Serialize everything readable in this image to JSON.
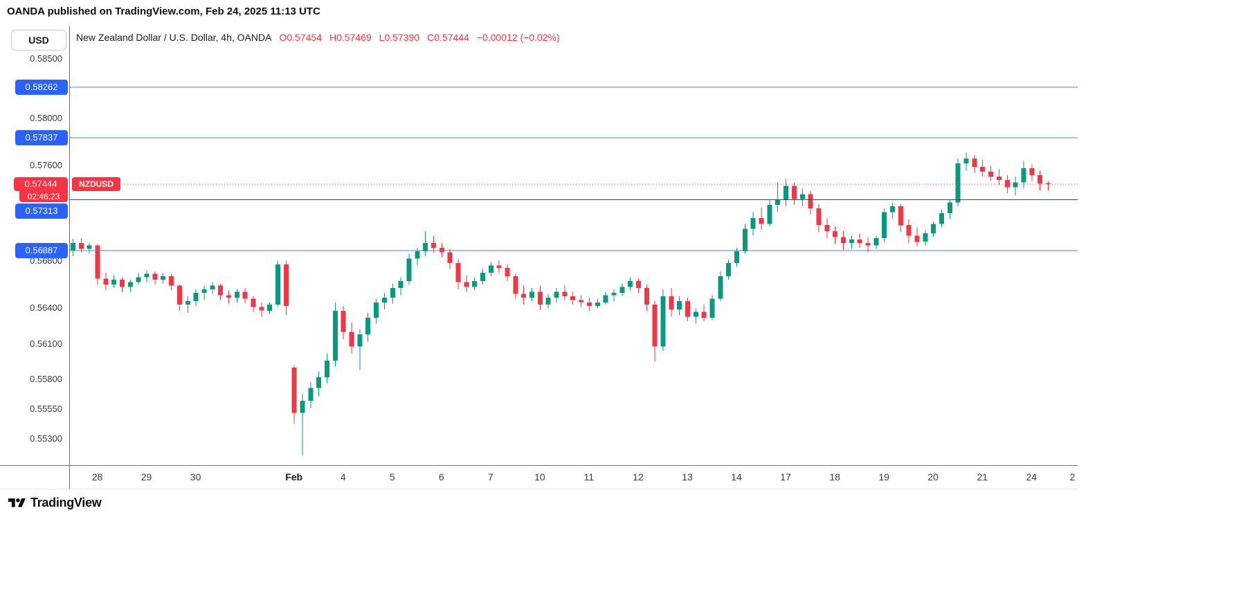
{
  "credit": "OANDA published on TradingView.com, Feb 24, 2025 11:13 UTC",
  "header": {
    "symbol_title": "New Zealand Dollar / U.S. Dollar, 4h, OANDA",
    "o": "O0.57454",
    "h": "H0.57469",
    "l": "L0.57390",
    "c": "C0.57444",
    "change": "−0.00012 (−0.02%)",
    "value_color": "#f23645"
  },
  "price_scale": {
    "currency_label": "USD"
  },
  "footer": {
    "logo_text": "TradingView"
  },
  "chart_data": {
    "type": "candlestick",
    "symbol": "NZDUSD",
    "timeframe": "4h",
    "exchange": "OANDA",
    "title": "New Zealand Dollar / U.S. Dollar, 4h, OANDA",
    "up_color": "#089981",
    "down_color": "#f23645",
    "grid": false,
    "y_axis": {
      "min": 0.55079,
      "max": 0.58774
    },
    "y_ticks": [
      "0.58500",
      "0.58000",
      "0.57600",
      "0.56800",
      "0.56400",
      "0.56100",
      "0.55800",
      "0.55550",
      "0.55300"
    ],
    "x_ticks": [
      {
        "label": "28",
        "index": 3
      },
      {
        "label": "29",
        "index": 9
      },
      {
        "label": "30",
        "index": 15
      },
      {
        "label": "Feb",
        "index": 27,
        "major": true
      },
      {
        "label": "4",
        "index": 33
      },
      {
        "label": "5",
        "index": 39
      },
      {
        "label": "6",
        "index": 45
      },
      {
        "label": "7",
        "index": 51
      },
      {
        "label": "10",
        "index": 57
      },
      {
        "label": "11",
        "index": 63
      },
      {
        "label": "12",
        "index": 69
      },
      {
        "label": "13",
        "index": 75
      },
      {
        "label": "14",
        "index": 81
      },
      {
        "label": "17",
        "index": 87
      },
      {
        "label": "18",
        "index": 93
      },
      {
        "label": "19",
        "index": 99
      },
      {
        "label": "20",
        "index": 105
      },
      {
        "label": "21",
        "index": 111
      },
      {
        "label": "24",
        "index": 117
      },
      {
        "label": "2",
        "index": 122
      }
    ],
    "levels": [
      {
        "label": "0.58262",
        "price": 0.58262,
        "line_color": "#4880ee",
        "badge_color": "#2962ff"
      },
      {
        "label": "0.57837",
        "price": 0.57837,
        "line_color": "#4880ee",
        "badge_color": "#2962ff"
      },
      {
        "label": "0.57313",
        "price": 0.57313,
        "line_color": "#37474f",
        "badge_color": "#2962ff",
        "badge_dy": 16
      },
      {
        "label": "0.56887",
        "price": 0.56887,
        "line_color": "#4880ee",
        "badge_color": "#2962ff"
      }
    ],
    "price_line": {
      "label": "0.57444",
      "price": 0.57444,
      "countdown": "02:46:23",
      "tag": "NZDUSD",
      "color": "#f23645"
    },
    "candles": [
      [
        0.5689,
        0.56985,
        0.5684,
        0.5695
      ],
      [
        0.5695,
        0.5699,
        0.5687,
        0.569
      ],
      [
        0.569,
        0.5695,
        0.5686,
        0.5693
      ],
      [
        0.5693,
        0.5694,
        0.566,
        0.5665
      ],
      [
        0.5665,
        0.567,
        0.5655,
        0.566
      ],
      [
        0.566,
        0.5668,
        0.5657,
        0.5664
      ],
      [
        0.5664,
        0.5666,
        0.5654,
        0.5658
      ],
      [
        0.5658,
        0.5664,
        0.5654,
        0.5662
      ],
      [
        0.5662,
        0.567,
        0.566,
        0.5666
      ],
      [
        0.5666,
        0.5672,
        0.5662,
        0.5669
      ],
      [
        0.5669,
        0.5671,
        0.566,
        0.5664
      ],
      [
        0.5664,
        0.567,
        0.5661,
        0.5667
      ],
      [
        0.5667,
        0.5669,
        0.5655,
        0.5659
      ],
      [
        0.5659,
        0.566,
        0.5638,
        0.5643
      ],
      [
        0.5643,
        0.565,
        0.5636,
        0.5646
      ],
      [
        0.5646,
        0.5656,
        0.5642,
        0.5653
      ],
      [
        0.5653,
        0.5659,
        0.5647,
        0.5656
      ],
      [
        0.5656,
        0.5662,
        0.5652,
        0.5659
      ],
      [
        0.5659,
        0.5661,
        0.5647,
        0.5651
      ],
      [
        0.5651,
        0.5655,
        0.5644,
        0.5649
      ],
      [
        0.5649,
        0.5656,
        0.5645,
        0.5654
      ],
      [
        0.5654,
        0.5657,
        0.5644,
        0.5648
      ],
      [
        0.5648,
        0.565,
        0.5637,
        0.5641
      ],
      [
        0.5641,
        0.5645,
        0.5633,
        0.5638
      ],
      [
        0.5638,
        0.5645,
        0.5635,
        0.5643
      ],
      [
        0.5643,
        0.568,
        0.5641,
        0.5677
      ],
      [
        0.5677,
        0.568,
        0.5634,
        0.5642
      ],
      [
        0.559,
        0.5592,
        0.5543,
        0.5552
      ],
      [
        0.5552,
        0.5568,
        0.5516,
        0.5562
      ],
      [
        0.5562,
        0.5578,
        0.5556,
        0.5573
      ],
      [
        0.5573,
        0.5587,
        0.5566,
        0.5582
      ],
      [
        0.5582,
        0.5602,
        0.5577,
        0.5596
      ],
      [
        0.5596,
        0.5645,
        0.5591,
        0.5638
      ],
      [
        0.5638,
        0.5642,
        0.5614,
        0.562
      ],
      [
        0.562,
        0.5628,
        0.5602,
        0.5608
      ],
      [
        0.5608,
        0.5622,
        0.5588,
        0.5618
      ],
      [
        0.5618,
        0.5636,
        0.5612,
        0.5632
      ],
      [
        0.5632,
        0.5648,
        0.5627,
        0.5645
      ],
      [
        0.5645,
        0.5653,
        0.5639,
        0.5649
      ],
      [
        0.5649,
        0.5661,
        0.5644,
        0.5657
      ],
      [
        0.5657,
        0.5666,
        0.5651,
        0.5663
      ],
      [
        0.5663,
        0.5686,
        0.566,
        0.5682
      ],
      [
        0.5682,
        0.5691,
        0.5676,
        0.5688
      ],
      [
        0.5688,
        0.5705,
        0.5684,
        0.5695
      ],
      [
        0.5695,
        0.5701,
        0.5687,
        0.5691
      ],
      [
        0.5691,
        0.5695,
        0.5683,
        0.5687
      ],
      [
        0.5687,
        0.569,
        0.5673,
        0.5678
      ],
      [
        0.5678,
        0.5681,
        0.5656,
        0.5662
      ],
      [
        0.5662,
        0.5668,
        0.5654,
        0.5658
      ],
      [
        0.5658,
        0.5666,
        0.5655,
        0.5663
      ],
      [
        0.5663,
        0.5673,
        0.566,
        0.567
      ],
      [
        0.567,
        0.5679,
        0.5667,
        0.5676
      ],
      [
        0.5676,
        0.568,
        0.567,
        0.5674
      ],
      [
        0.5674,
        0.5677,
        0.5663,
        0.5667
      ],
      [
        0.5667,
        0.5669,
        0.5648,
        0.5652
      ],
      [
        0.5652,
        0.5659,
        0.5643,
        0.5649
      ],
      [
        0.5649,
        0.5657,
        0.5646,
        0.5654
      ],
      [
        0.5654,
        0.5659,
        0.5639,
        0.5643
      ],
      [
        0.5643,
        0.5652,
        0.564,
        0.5649
      ],
      [
        0.5649,
        0.5657,
        0.5645,
        0.5654
      ],
      [
        0.5654,
        0.5659,
        0.5647,
        0.565
      ],
      [
        0.565,
        0.5654,
        0.5643,
        0.5647
      ],
      [
        0.5647,
        0.5651,
        0.5641,
        0.5645
      ],
      [
        0.5645,
        0.5649,
        0.5638,
        0.5642
      ],
      [
        0.5642,
        0.5648,
        0.564,
        0.5645
      ],
      [
        0.5645,
        0.5654,
        0.5643,
        0.5651
      ],
      [
        0.5651,
        0.5656,
        0.5646,
        0.5653
      ],
      [
        0.5653,
        0.5661,
        0.565,
        0.5658
      ],
      [
        0.5658,
        0.5666,
        0.5655,
        0.5663
      ],
      [
        0.5663,
        0.5665,
        0.5653,
        0.5657
      ],
      [
        0.5657,
        0.566,
        0.5638,
        0.5643
      ],
      [
        0.5643,
        0.5646,
        0.5595,
        0.5608
      ],
      [
        0.5608,
        0.5656,
        0.5604,
        0.565
      ],
      [
        0.565,
        0.5657,
        0.5633,
        0.5639
      ],
      [
        0.5639,
        0.565,
        0.5634,
        0.5646
      ],
      [
        0.5646,
        0.5649,
        0.5629,
        0.5633
      ],
      [
        0.5633,
        0.564,
        0.5627,
        0.5637
      ],
      [
        0.5637,
        0.5643,
        0.5629,
        0.5632
      ],
      [
        0.5632,
        0.5651,
        0.563,
        0.5648
      ],
      [
        0.5648,
        0.5671,
        0.5646,
        0.5667
      ],
      [
        0.5667,
        0.5681,
        0.5664,
        0.5678
      ],
      [
        0.5678,
        0.5691,
        0.5675,
        0.5688
      ],
      [
        0.5688,
        0.5711,
        0.5686,
        0.5707
      ],
      [
        0.5707,
        0.5721,
        0.5701,
        0.5716
      ],
      [
        0.5716,
        0.5725,
        0.5706,
        0.5711
      ],
      [
        0.5711,
        0.5731,
        0.5709,
        0.5727
      ],
      [
        0.5727,
        0.5746,
        0.5721,
        0.5731
      ],
      [
        0.5731,
        0.5749,
        0.5726,
        0.5743
      ],
      [
        0.5743,
        0.5746,
        0.5727,
        0.5732
      ],
      [
        0.5732,
        0.5741,
        0.5726,
        0.5736
      ],
      [
        0.5736,
        0.5739,
        0.5719,
        0.5724
      ],
      [
        0.5724,
        0.5728,
        0.5704,
        0.571
      ],
      [
        0.571,
        0.5716,
        0.5699,
        0.5705
      ],
      [
        0.5705,
        0.5709,
        0.5694,
        0.57
      ],
      [
        0.57,
        0.5705,
        0.5689,
        0.5695
      ],
      [
        0.5695,
        0.5701,
        0.569,
        0.5698
      ],
      [
        0.5698,
        0.5703,
        0.5691,
        0.5695
      ],
      [
        0.5695,
        0.57,
        0.5687,
        0.5693
      ],
      [
        0.5693,
        0.5701,
        0.569,
        0.5699
      ],
      [
        0.5699,
        0.5724,
        0.5696,
        0.5721
      ],
      [
        0.5721,
        0.5729,
        0.5715,
        0.5726
      ],
      [
        0.5726,
        0.5728,
        0.5704,
        0.571
      ],
      [
        0.571,
        0.5715,
        0.5695,
        0.5701
      ],
      [
        0.5701,
        0.5708,
        0.5692,
        0.5696
      ],
      [
        0.5696,
        0.5706,
        0.5693,
        0.5703
      ],
      [
        0.5703,
        0.5713,
        0.57,
        0.5711
      ],
      [
        0.5711,
        0.5723,
        0.5708,
        0.572
      ],
      [
        0.572,
        0.5731,
        0.5715,
        0.5729
      ],
      [
        0.5729,
        0.5766,
        0.5726,
        0.5762
      ],
      [
        0.5762,
        0.5771,
        0.5756,
        0.5766
      ],
      [
        0.5766,
        0.5769,
        0.5754,
        0.5759
      ],
      [
        0.5759,
        0.5765,
        0.5751,
        0.5755
      ],
      [
        0.5755,
        0.576,
        0.5747,
        0.5751
      ],
      [
        0.5751,
        0.5757,
        0.5744,
        0.5748
      ],
      [
        0.5748,
        0.5752,
        0.5737,
        0.5742
      ],
      [
        0.5742,
        0.5751,
        0.5735,
        0.5746
      ],
      [
        0.5746,
        0.5764,
        0.5741,
        0.5758
      ],
      [
        0.5758,
        0.5761,
        0.5747,
        0.5752
      ],
      [
        0.5752,
        0.5756,
        0.5739,
        0.5745
      ],
      [
        0.57454,
        0.57469,
        0.5739,
        0.57444
      ]
    ]
  }
}
